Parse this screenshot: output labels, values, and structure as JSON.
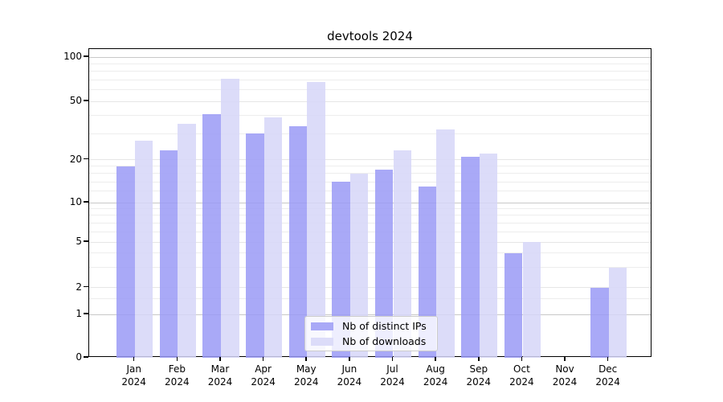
{
  "title": "devtools 2024",
  "chart_data": {
    "type": "bar",
    "title": "devtools 2024",
    "year": "2024",
    "categories": [
      "Jan 2024",
      "Feb 2024",
      "Mar 2024",
      "Apr 2024",
      "May 2024",
      "Jun 2024",
      "Jul 2024",
      "Aug 2024",
      "Sep 2024",
      "Oct 2024",
      "Nov 2024",
      "Dec 2024"
    ],
    "series": [
      {
        "name": "Nb of distinct IPs",
        "color": "#a9a9f7",
        "fill": "rgba(154,154,246,0.85)",
        "values": [
          18,
          23,
          41,
          30,
          34,
          14,
          17,
          13,
          21,
          4,
          0,
          2
        ]
      },
      {
        "name": "Nb of downloads",
        "color": "#dcdcf9",
        "fill": "rgba(214,214,248,0.85)",
        "values": [
          27,
          35,
          71,
          39,
          68,
          16,
          23,
          32,
          22,
          5,
          0,
          3
        ]
      }
    ],
    "xlabel": "",
    "ylabel": "",
    "yticks": [
      0,
      1,
      2,
      5,
      10,
      20,
      50,
      100
    ],
    "minor_grid_values": [
      1.5,
      3,
      4,
      6,
      7,
      8,
      9,
      12,
      14,
      16,
      18,
      30,
      40,
      60,
      70,
      80,
      90
    ],
    "mid_grid_values": [
      2,
      5,
      20,
      50
    ],
    "major_grid_values": [
      1,
      10,
      100
    ],
    "scale": "quasi-log (symlog-like, linear below 1)",
    "ylim": [
      0,
      113
    ],
    "grid": true,
    "legend_position": "lower center",
    "grid_major_color": "#c8c8c8",
    "grid_minor_color": "#ededed"
  }
}
